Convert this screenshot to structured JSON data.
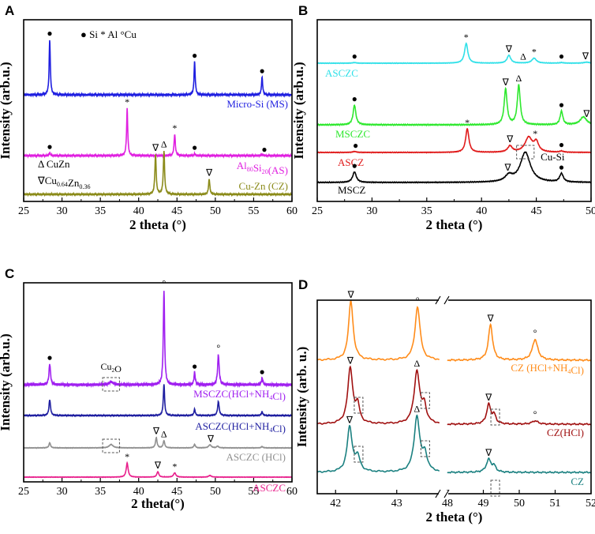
{
  "chart_data": [
    {
      "panel": "A",
      "type": "line",
      "xlabel": "2 theta (°)",
      "ylabel": "Intensity (arb.u.)",
      "xlim": [
        25,
        60
      ],
      "xticks": [
        25,
        30,
        35,
        40,
        45,
        50,
        55,
        60
      ],
      "legend_text": "● Si  * Al  °Cu",
      "notes": [
        {
          "kind": "sub",
          "parts": [
            [
              "Δ CuZn",
              "n"
            ]
          ]
        },
        {
          "kind": "sub",
          "parts": [
            [
              "∇Cu",
              "n"
            ],
            [
              "0.64",
              "s"
            ],
            [
              "Zn",
              "n"
            ],
            [
              "0.36",
              "s"
            ]
          ]
        }
      ],
      "series": [
        {
          "name": "Micro-Si (MS)",
          "color": "#1f1fe0",
          "label_parts": [
            [
              "Micro-Si (MS)",
              "n"
            ]
          ],
          "peaks": [
            [
              28.4,
              1.0,
              0.09
            ],
            [
              47.3,
              0.6,
              0.09
            ],
            [
              56.1,
              0.32,
              0.09
            ]
          ],
          "markers": [
            {
              "x": 28.4,
              "s": "●"
            },
            {
              "x": 47.3,
              "s": "●"
            },
            {
              "x": 56.1,
              "s": "●"
            }
          ]
        },
        {
          "name": "Al80Si20 (AS)",
          "color": "#e020e0",
          "label_parts": [
            [
              "Al",
              "n"
            ],
            [
              "80",
              "s"
            ],
            [
              "Si",
              "n"
            ],
            [
              "20",
              "s"
            ],
            [
              "(AS)",
              "n"
            ]
          ],
          "peaks": [
            [
              28.4,
              0.06,
              0.09
            ],
            [
              38.5,
              1.0,
              0.09
            ],
            [
              44.7,
              0.45,
              0.1
            ],
            [
              47.3,
              0.04,
              0.09
            ],
            [
              56.1,
              0.03,
              0.09
            ]
          ],
          "markers": [
            {
              "x": 28.4,
              "s": "●"
            },
            {
              "x": 38.5,
              "s": "*"
            },
            {
              "x": 44.7,
              "s": "*"
            },
            {
              "x": 47.3,
              "s": "●"
            },
            {
              "x": 56.4,
              "s": "●"
            }
          ]
        },
        {
          "name": "Cu-Zn (CZ)",
          "color": "#8b8b1a",
          "label_parts": [
            [
              "Cu-Zn (CZ)",
              "n"
            ]
          ],
          "peaks": [
            [
              42.2,
              0.92,
              0.1
            ],
            [
              43.3,
              1.0,
              0.1
            ],
            [
              49.2,
              0.35,
              0.1
            ]
          ],
          "markers": [
            {
              "x": 42.2,
              "s": "∇"
            },
            {
              "x": 43.3,
              "s": "Δ"
            },
            {
              "x": 49.2,
              "s": "∇"
            }
          ]
        }
      ]
    },
    {
      "panel": "B",
      "type": "line",
      "xlabel": "2 theta (°)",
      "ylabel": "Intensity (arb.u.)",
      "xlim": [
        25,
        50
      ],
      "xticks": [
        25,
        30,
        35,
        40,
        45,
        50
      ],
      "box_label": "Cu-Si",
      "series": [
        {
          "name": "ASCZC",
          "color": "#2fe0e8",
          "label_parts": [
            [
              "ASCZC",
              "n"
            ]
          ],
          "peaks": [
            [
              28.4,
              0.03,
              0.2
            ],
            [
              38.6,
              1.0,
              0.18
            ],
            [
              42.5,
              0.4,
              0.2
            ],
            [
              44.8,
              0.25,
              0.25
            ],
            [
              47.3,
              0.03,
              0.2
            ],
            [
              49.6,
              0.05,
              0.3
            ]
          ],
          "markers": [
            {
              "x": 28.4,
              "s": "●"
            },
            {
              "x": 38.6,
              "s": "*"
            },
            {
              "x": 42.5,
              "s": "∇"
            },
            {
              "x": 43.8,
              "s": "Δ"
            },
            {
              "x": 44.8,
              "s": "*"
            },
            {
              "x": 47.3,
              "s": "●"
            },
            {
              "x": 49.5,
              "s": "∇"
            }
          ]
        },
        {
          "name": "MSCZC",
          "color": "#2ee82e",
          "label_parts": [
            [
              "MSCZC",
              "n"
            ]
          ],
          "peaks": [
            [
              28.4,
              0.5,
              0.15
            ],
            [
              42.2,
              0.9,
              0.16
            ],
            [
              43.4,
              1.0,
              0.16
            ],
            [
              47.3,
              0.34,
              0.15
            ],
            [
              49.3,
              0.2,
              0.35
            ]
          ],
          "markers": [
            {
              "x": 28.4,
              "s": "●"
            },
            {
              "x": 42.2,
              "s": "∇"
            },
            {
              "x": 43.4,
              "s": "Δ"
            },
            {
              "x": 47.3,
              "s": "●"
            },
            {
              "x": 49.6,
              "s": "∇"
            }
          ]
        },
        {
          "name": "ASCZ",
          "color": "#e01a1a",
          "label_parts": [
            [
              "ASCZ",
              "n"
            ]
          ],
          "peaks": [
            [
              28.4,
              0.04,
              0.2
            ],
            [
              38.7,
              1.0,
              0.18
            ],
            [
              42.6,
              0.26,
              0.25
            ],
            [
              44.3,
              0.62,
              0.4
            ],
            [
              45.0,
              0.4,
              0.25
            ],
            [
              47.3,
              0.05,
              0.2
            ]
          ],
          "markers": [
            {
              "x": 28.5,
              "s": "●"
            },
            {
              "x": 38.7,
              "s": "*"
            },
            {
              "x": 42.6,
              "s": "∇"
            },
            {
              "x": 44.9,
              "s": "*"
            },
            {
              "x": 47.3,
              "s": "●"
            }
          ]
        },
        {
          "name": "MSCZ",
          "color": "#000000",
          "label_parts": [
            [
              "MSCZ",
              "n"
            ]
          ],
          "peaks": [
            [
              28.4,
              0.35,
              0.2
            ],
            [
              42.5,
              0.2,
              0.4
            ],
            [
              44.0,
              1.0,
              0.55
            ],
            [
              47.3,
              0.28,
              0.2
            ]
          ],
          "markers": [
            {
              "x": 28.4,
              "s": "●"
            },
            {
              "x": 42.4,
              "s": "∇"
            },
            {
              "x": 47.3,
              "s": "●"
            }
          ]
        }
      ]
    },
    {
      "panel": "C",
      "type": "line",
      "xlabel": "2 theta(°)",
      "ylabel": "Intensity (arb.u.)",
      "xlim": [
        25,
        60
      ],
      "xticks": [
        25,
        30,
        35,
        40,
        45,
        50,
        55,
        60
      ],
      "box_label_parts": [
        [
          "Cu",
          "n"
        ],
        [
          "2",
          "s"
        ],
        [
          "O",
          "n"
        ]
      ],
      "series": [
        {
          "name": "MSCZC(HCl+NH4Cl)",
          "color": "#a020f0",
          "label_parts": [
            [
              "MSCZC(HCl+NH",
              "n"
            ],
            [
              "4",
              "s"
            ],
            [
              "Cl)",
              "n"
            ]
          ],
          "peaks": [
            [
              28.4,
              0.22,
              0.12
            ],
            [
              36.4,
              0.03,
              0.3
            ],
            [
              43.3,
              1.0,
              0.1
            ],
            [
              47.3,
              0.13,
              0.1
            ],
            [
              50.4,
              0.32,
              0.12
            ],
            [
              56.1,
              0.07,
              0.1
            ]
          ],
          "markers": [
            {
              "x": 28.4,
              "s": "●"
            },
            {
              "x": 43.3,
              "s": "°"
            },
            {
              "x": 47.3,
              "s": "●"
            },
            {
              "x": 50.4,
              "s": "°"
            },
            {
              "x": 56.1,
              "s": "●"
            }
          ]
        },
        {
          "name": "ASCZC(HCl+NH4Cl)",
          "color": "#1e1ea0",
          "label_parts": [
            [
              "ASCZC(HCl+NH",
              "n"
            ],
            [
              "4",
              "s"
            ],
            [
              "Cl)",
              "n"
            ]
          ],
          "peaks": [
            [
              28.4,
              0.5,
              0.12
            ],
            [
              43.3,
              1.0,
              0.1
            ],
            [
              47.3,
              0.2,
              0.1
            ],
            [
              50.4,
              0.45,
              0.12
            ],
            [
              56.1,
              0.12,
              0.1
            ]
          ],
          "markers": []
        },
        {
          "name": "ASCZC (HCl)",
          "color": "#909090",
          "label_parts": [
            [
              "ASCZC (HCl)",
              "n"
            ]
          ],
          "peaks": [
            [
              28.4,
              0.3,
              0.12
            ],
            [
              36.4,
              0.2,
              0.3
            ],
            [
              42.3,
              0.6,
              0.12
            ],
            [
              43.3,
              0.42,
              0.12
            ],
            [
              47.3,
              0.2,
              0.12
            ],
            [
              49.3,
              0.18,
              0.2
            ],
            [
              50.3,
              0.1,
              0.15
            ],
            [
              56.1,
              0.08,
              0.12
            ]
          ],
          "markers": [
            {
              "x": 42.3,
              "s": "∇"
            },
            {
              "x": 43.3,
              "s": "Δ"
            },
            {
              "x": 49.4,
              "s": "∇"
            }
          ]
        },
        {
          "name": "ASCZC",
          "color": "#e8208c",
          "label_parts": [
            [
              "ASCZC",
              "n"
            ]
          ],
          "peaks": [
            [
              38.5,
              1.0,
              0.15
            ],
            [
              42.5,
              0.38,
              0.15
            ],
            [
              44.7,
              0.3,
              0.18
            ],
            [
              49.3,
              0.12,
              0.2
            ]
          ],
          "markers": [
            {
              "x": 38.5,
              "s": "*"
            },
            {
              "x": 42.5,
              "s": "∇"
            },
            {
              "x": 44.7,
              "s": "*"
            }
          ]
        }
      ]
    },
    {
      "panel": "D",
      "type": "line",
      "xlabel": "2 theta (°)",
      "ylabel": "Intensity (arb. u.)",
      "xlim_left": [
        41.7,
        43.7
      ],
      "xlim_right": [
        48,
        52
      ],
      "xticks_left": [
        42,
        43
      ],
      "xticks_right": [
        48,
        49,
        50,
        51,
        52
      ],
      "series": [
        {
          "name": "CZ (HCl+NH4Cl)",
          "color": "#ff8c1a",
          "label_parts": [
            [
              "CZ (HCl+NH",
              "n"
            ],
            [
              "4",
              "s"
            ],
            [
              "Cl)",
              "n"
            ]
          ],
          "peaks": [
            [
              42.25,
              1.0,
              0.045
            ],
            [
              43.34,
              0.9,
              0.05
            ],
            [
              49.2,
              0.6,
              0.07
            ],
            [
              50.44,
              0.35,
              0.09
            ]
          ],
          "markers": [
            {
              "x": 42.25,
              "s": "∇"
            },
            {
              "x": 43.34,
              "s": "°"
            },
            {
              "x": 49.2,
              "s": "∇"
            },
            {
              "x": 50.44,
              "s": "°"
            }
          ]
        },
        {
          "name": "CZ(HCl)",
          "color": "#a01010",
          "label_parts": [
            [
              "CZ(HCl)",
              "n"
            ]
          ],
          "peaks": [
            [
              42.24,
              1.0,
              0.05
            ],
            [
              42.36,
              0.3,
              0.04
            ],
            [
              43.33,
              0.95,
              0.055
            ],
            [
              43.45,
              0.3,
              0.04
            ],
            [
              49.15,
              0.35,
              0.07
            ],
            [
              49.3,
              0.15,
              0.06
            ],
            [
              50.44,
              0.06,
              0.1
            ]
          ],
          "markers": [
            {
              "x": 42.24,
              "s": "∇"
            },
            {
              "x": 43.33,
              "s": "Δ"
            },
            {
              "x": 49.15,
              "s": "∇"
            },
            {
              "x": 50.44,
              "s": "°"
            }
          ]
        },
        {
          "name": "CZ",
          "color": "#1a8080",
          "label_parts": [
            [
              "CZ",
              "n"
            ]
          ],
          "peaks": [
            [
              42.23,
              0.8,
              0.05
            ],
            [
              42.36,
              0.25,
              0.05
            ],
            [
              43.33,
              1.0,
              0.055
            ],
            [
              43.46,
              0.3,
              0.045
            ],
            [
              49.15,
              0.23,
              0.08
            ],
            [
              49.3,
              0.1,
              0.06
            ]
          ],
          "markers": [
            {
              "x": 42.23,
              "s": "∇"
            },
            {
              "x": 43.33,
              "s": "Δ"
            },
            {
              "x": 49.15,
              "s": "∇"
            }
          ]
        }
      ]
    }
  ]
}
